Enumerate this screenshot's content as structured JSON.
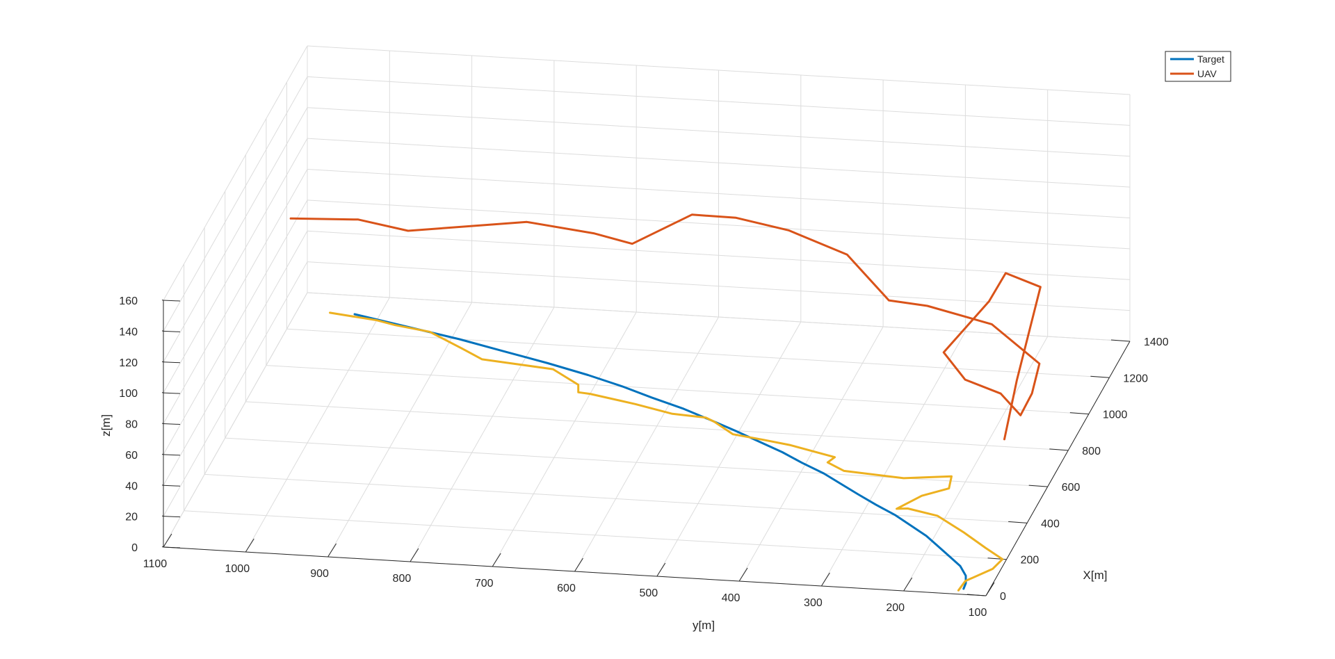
{
  "chart_data": {
    "type": "line",
    "projection": "3d",
    "grid": true,
    "legend_position": "top-right",
    "xlabel": "X[m]",
    "ylabel": "y[m]",
    "zlabel": "z[m]",
    "xlim": [
      0,
      1400
    ],
    "ylim": [
      100,
      1100
    ],
    "zlim": [
      0,
      160
    ],
    "x_ticks": [
      0,
      200,
      400,
      600,
      800,
      1000,
      1200,
      1400
    ],
    "y_ticks": [
      100,
      200,
      300,
      400,
      500,
      600,
      700,
      800,
      900,
      1000,
      1100
    ],
    "z_ticks": [
      0,
      20,
      40,
      60,
      80,
      100,
      120,
      140,
      160
    ],
    "series": [
      {
        "name": "Target",
        "color": "#0072BD",
        "points": [
          [
            30,
            131,
            0
          ],
          [
            60,
            132,
            0
          ],
          [
            100,
            137,
            0
          ],
          [
            150,
            150,
            0
          ],
          [
            200,
            170,
            0
          ],
          [
            250,
            190,
            0
          ],
          [
            300,
            210,
            0
          ],
          [
            350,
            235,
            0
          ],
          [
            400,
            260,
            0
          ],
          [
            450,
            290,
            0
          ],
          [
            500,
            318,
            0
          ],
          [
            550,
            345,
            0
          ],
          [
            600,
            372,
            0
          ],
          [
            650,
            405,
            0
          ],
          [
            700,
            435,
            0
          ],
          [
            750,
            470,
            0
          ],
          [
            800,
            505,
            0
          ],
          [
            850,
            542,
            0
          ],
          [
            900,
            580,
            0
          ],
          [
            950,
            625,
            0
          ],
          [
            1000,
            667,
            0
          ],
          [
            1050,
            715,
            0
          ],
          [
            1100,
            770,
            0
          ],
          [
            1150,
            830,
            0
          ],
          [
            1200,
            890,
            0
          ],
          [
            1250,
            960,
            0
          ],
          [
            1300,
            1030,
            0
          ]
        ]
      },
      {
        "name": "UAV",
        "color": "#D95319",
        "points": [
          [
            371,
            124,
            57
          ],
          [
            500,
            125,
            80
          ],
          [
            610,
            110,
            128
          ],
          [
            640,
            156,
            132
          ],
          [
            550,
            165,
            124
          ],
          [
            445,
            207,
            102
          ],
          [
            405,
            176,
            90
          ],
          [
            424,
            135,
            80
          ],
          [
            520,
            123,
            55
          ],
          [
            624,
            122,
            57
          ],
          [
            760,
            130,
            60
          ],
          [
            840,
            198,
            74
          ],
          [
            950,
            290,
            70
          ],
          [
            1000,
            343,
            66
          ],
          [
            1050,
            400,
            88
          ],
          [
            1120,
            480,
            93
          ],
          [
            1170,
            550,
            93
          ],
          [
            1140,
            600,
            97
          ],
          [
            1040,
            660,
            88
          ],
          [
            985,
            700,
            100
          ],
          [
            975,
            780,
            106
          ],
          [
            940,
            920,
            100
          ],
          [
            935,
            980,
            106
          ],
          [
            870,
            1054,
            112
          ]
        ]
      },
      {
        "color": "#EDB120",
        "points": [
          [
            20,
            136,
            0
          ],
          [
            72,
            134,
            0
          ],
          [
            145,
            110,
            0
          ],
          [
            200,
            105,
            0
          ],
          [
            254,
            132,
            0
          ],
          [
            330,
            168,
            0
          ],
          [
            410,
            210,
            0
          ],
          [
            440,
            250,
            0
          ],
          [
            435,
            263,
            0
          ],
          [
            512,
            242,
            0
          ],
          [
            560,
            215,
            0
          ],
          [
            625,
            220,
            0
          ],
          [
            600,
            275,
            0
          ],
          [
            620,
            350,
            0
          ],
          [
            660,
            375,
            0
          ],
          [
            690,
            370,
            0
          ],
          [
            740,
            430,
            0
          ],
          [
            760,
            465,
            0
          ],
          [
            780,
            505,
            0
          ],
          [
            840,
            535,
            0
          ],
          [
            860,
            548,
            0
          ],
          [
            870,
            590,
            0
          ],
          [
            910,
            640,
            0
          ],
          [
            950,
            700,
            0
          ],
          [
            955,
            715,
            0
          ],
          [
            995,
            720,
            0
          ],
          [
            1070,
            760,
            0
          ],
          [
            1090,
            820,
            0
          ],
          [
            1100,
            850,
            0
          ],
          [
            1150,
            880,
            0
          ],
          [
            1230,
            930,
            0
          ],
          [
            1255,
            975,
            0
          ],
          [
            1275,
            1000,
            0
          ],
          [
            1300,
            1060,
            0
          ]
        ]
      }
    ],
    "legend": [
      "Target",
      "UAV"
    ]
  }
}
